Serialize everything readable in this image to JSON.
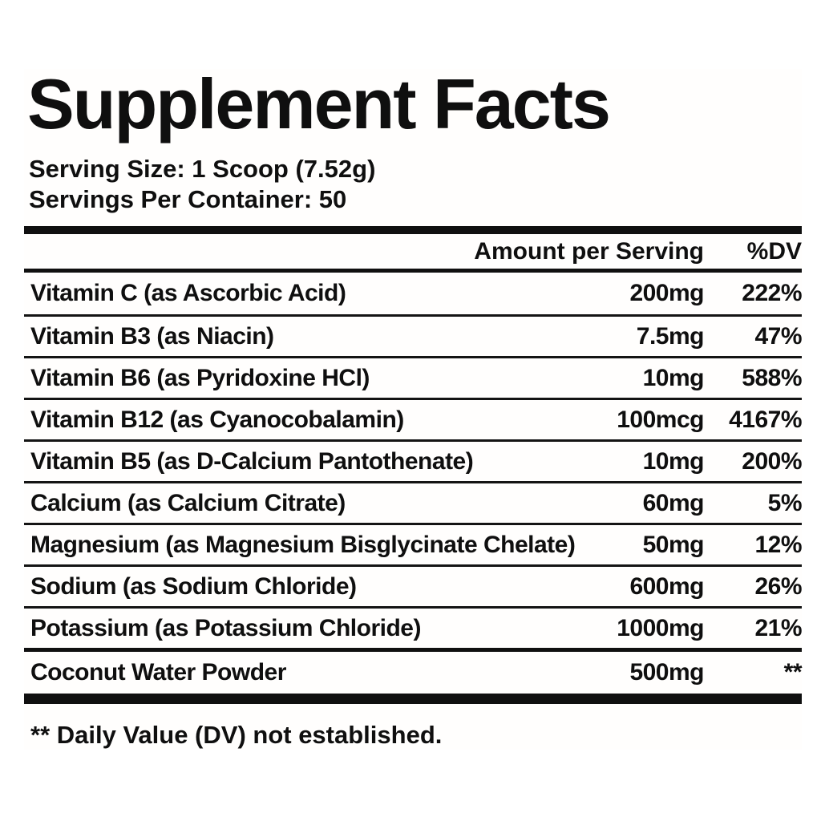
{
  "label": {
    "title": "Supplement Facts",
    "serving_size": "Serving Size: 1 Scoop (7.52g)",
    "servings_per_container": "Servings Per Container: 50",
    "table": {
      "header": {
        "amount": "Amount per Serving",
        "dv": "%DV"
      },
      "rows": [
        {
          "name": "Vitamin C (as Ascorbic Acid)",
          "amount": "200mg",
          "dv": "222%"
        },
        {
          "name": "Vitamin B3 (as Niacin)",
          "amount": "7.5mg",
          "dv": "47%"
        },
        {
          "name": "Vitamin B6 (as Pyridoxine HCl)",
          "amount": "10mg",
          "dv": "588%"
        },
        {
          "name": "Vitamin B12 (as Cyanocobalamin)",
          "amount": "100mcg",
          "dv": "4167%"
        },
        {
          "name": "Vitamin B5 (as D-Calcium Pantothenate)",
          "amount": "10mg",
          "dv": "200%"
        },
        {
          "name": "Calcium (as Calcium Citrate)",
          "amount": "60mg",
          "dv": "5%"
        },
        {
          "name": "Magnesium (as Magnesium Bisglycinate Chelate)",
          "amount": "50mg",
          "dv": "12%"
        },
        {
          "name": "Sodium (as Sodium Chloride)",
          "amount": "600mg",
          "dv": "26%"
        },
        {
          "name": "Potassium (as Potassium Chloride)",
          "amount": "1000mg",
          "dv": "21%"
        }
      ],
      "other_rows": [
        {
          "name": "Coconut Water Powder",
          "amount": "500mg",
          "dv": "**"
        }
      ]
    },
    "footnote": "** Daily Value (DV) not established.",
    "colors": {
      "text": "#0f0f0f",
      "rule": "#101010",
      "background": "#ffffff"
    }
  }
}
